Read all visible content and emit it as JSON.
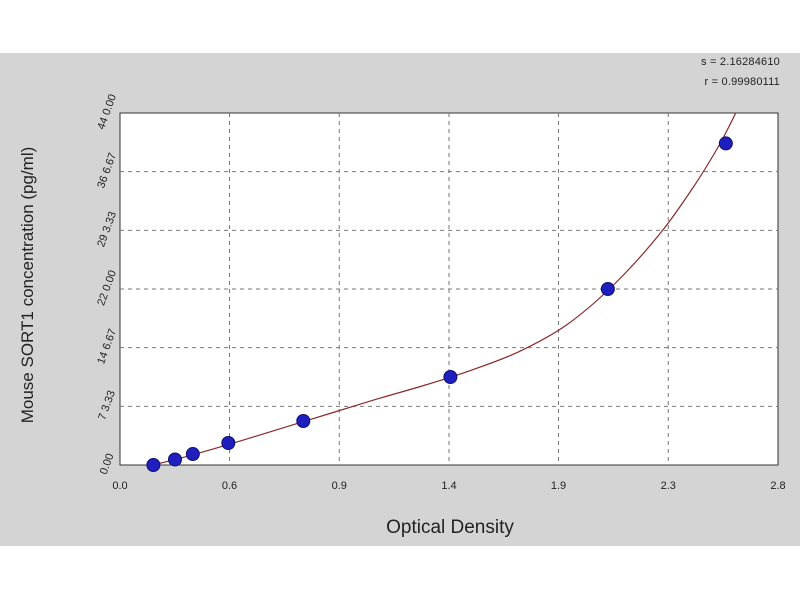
{
  "chart_data": {
    "type": "scatter",
    "title": "",
    "xlabel": "Optical Density",
    "ylabel": "Mouse SORT1 concentration (pg/ml)",
    "xlim": [
      0.0,
      2.8
    ],
    "ylim": [
      0.0,
      440.0
    ],
    "x_ticks": [
      "0.0",
      "0.6",
      "0.9",
      "1.4",
      "1.9",
      "2.3",
      "2.8"
    ],
    "x_tick_values": [
      0.0,
      0.466,
      0.933,
      1.4,
      1.866,
      2.333,
      2.8
    ],
    "y_ticks": [
      "0.00",
      "7 3.33",
      "14 6.67",
      "22 0.00",
      "29 3.33",
      "36 6.67",
      "44 0.00"
    ],
    "y_tick_values": [
      0,
      73.33,
      146.67,
      220.0,
      293.33,
      366.67,
      440.0
    ],
    "grid": true,
    "series": [
      {
        "points": [
          {
            "x": 0.142,
            "y": 0
          },
          {
            "x": 0.234,
            "y": 6.9
          },
          {
            "x": 0.31,
            "y": 13.7
          },
          {
            "x": 0.461,
            "y": 27.5
          },
          {
            "x": 0.78,
            "y": 55
          },
          {
            "x": 1.406,
            "y": 110
          },
          {
            "x": 2.076,
            "y": 220
          },
          {
            "x": 2.578,
            "y": 402
          }
        ]
      }
    ],
    "fit_curve": [
      {
        "x": 0.14,
        "y": 0
      },
      {
        "x": 0.3,
        "y": 12
      },
      {
        "x": 0.5,
        "y": 29
      },
      {
        "x": 0.7,
        "y": 47
      },
      {
        "x": 0.9,
        "y": 65
      },
      {
        "x": 1.1,
        "y": 83
      },
      {
        "x": 1.3,
        "y": 100
      },
      {
        "x": 1.5,
        "y": 119
      },
      {
        "x": 1.7,
        "y": 142
      },
      {
        "x": 1.9,
        "y": 175
      },
      {
        "x": 2.1,
        "y": 225
      },
      {
        "x": 2.3,
        "y": 290
      },
      {
        "x": 2.45,
        "y": 352
      },
      {
        "x": 2.55,
        "y": 400
      },
      {
        "x": 2.62,
        "y": 440
      }
    ],
    "stats": {
      "s": "s = 2.16284610",
      "r": "r = 0.99980111"
    },
    "colors": {
      "point_fill": "#1f1fbf",
      "curve": "#8a2a2a",
      "background": "#d4d4d4",
      "plot_area": "#ffffff"
    }
  }
}
